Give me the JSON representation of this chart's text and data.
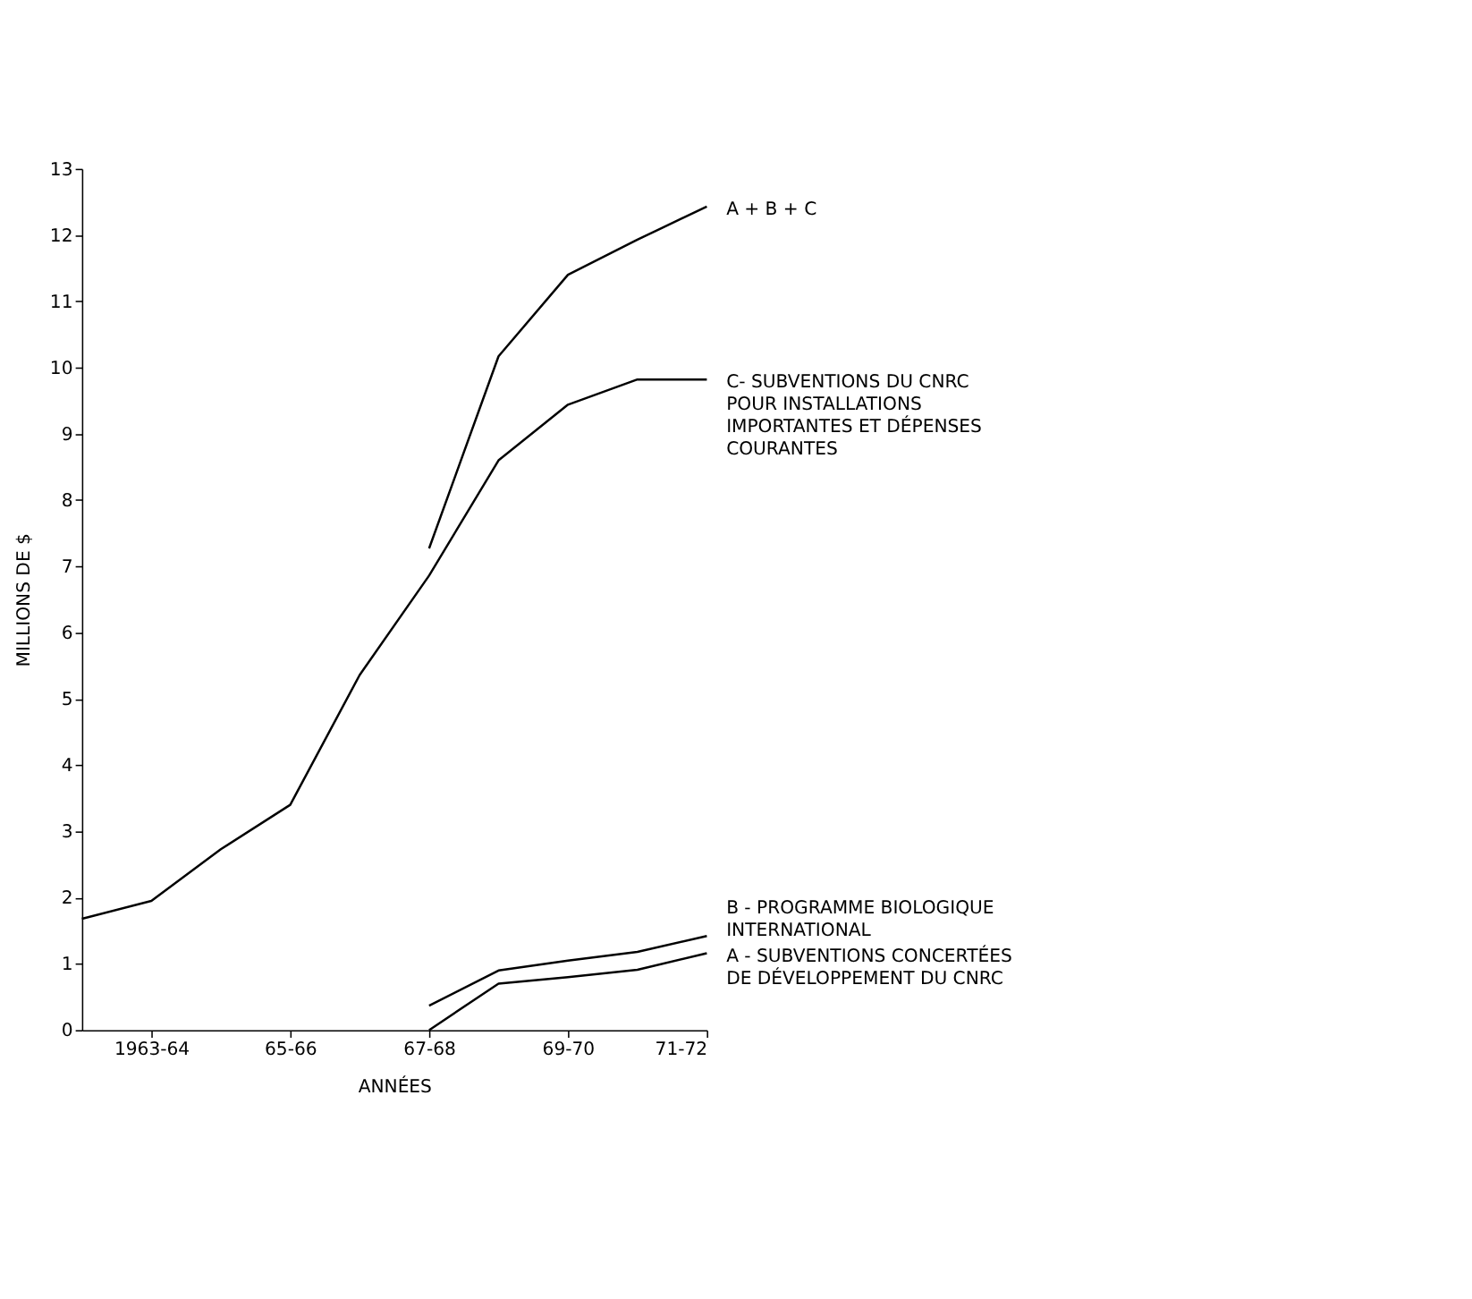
{
  "chart_data": {
    "type": "line",
    "xlabel": "ANNÉES",
    "ylabel": "MILLIONS DE $",
    "categories": [
      null,
      "1963-64",
      null,
      "65-66",
      null,
      "67-68",
      null,
      "69-70",
      null,
      "71-72"
    ],
    "ylim": [
      0,
      13
    ],
    "yticks": [
      0,
      1,
      2,
      3,
      4,
      5,
      6,
      7,
      8,
      9,
      10,
      11,
      12,
      13
    ],
    "grid": false,
    "marker": "none",
    "line_style": "solid",
    "series": [
      {
        "name": "A + B + C",
        "color": "#000000",
        "values": [
          null,
          null,
          null,
          null,
          null,
          7.27,
          10.17,
          11.4,
          11.93,
          12.43
        ]
      },
      {
        "name": "C-  SUBVENTIONS DU CNRC\nPOUR INSTALLATIONS\nIMPORTANTES ET DÉPENSES\nCOURANTES",
        "color": "#000000",
        "values": [
          1.68,
          1.95,
          2.73,
          3.4,
          5.36,
          6.86,
          8.6,
          9.44,
          9.82,
          9.82
        ]
      },
      {
        "name": "B - PROGRAMME BIOLOGIQUE\n     INTERNATIONAL",
        "color": "#000000",
        "values": [
          null,
          null,
          null,
          null,
          null,
          0.37,
          0.9,
          1.05,
          1.18,
          1.42
        ]
      },
      {
        "name": "A - SUBVENTIONS CONCERTÉES\n     DE DÉVELOPPEMENT DU CNRC",
        "color": "#000000",
        "values": [
          null,
          null,
          null,
          null,
          null,
          0.0,
          0.7,
          0.8,
          0.91,
          1.16
        ]
      }
    ]
  }
}
